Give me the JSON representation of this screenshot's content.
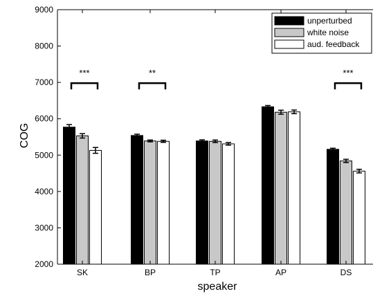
{
  "chart_data": {
    "type": "bar",
    "title": "",
    "xlabel": "speaker",
    "ylabel": "COG",
    "ylim": [
      2000,
      9000
    ],
    "yticks": [
      2000,
      3000,
      4000,
      5000,
      6000,
      7000,
      8000,
      9000
    ],
    "categories": [
      "SK",
      "BP",
      "TP",
      "AP",
      "DS"
    ],
    "series": [
      {
        "name": "unperturbed",
        "color": "#000000",
        "values": [
          5770,
          5540,
          5390,
          6330,
          5160
        ],
        "errors": [
          70,
          35,
          30,
          35,
          30
        ]
      },
      {
        "name": "white noise",
        "color": "#c8c8c8",
        "values": [
          5530,
          5390,
          5380,
          6180,
          4840
        ],
        "errors": [
          60,
          25,
          35,
          55,
          45
        ]
      },
      {
        "name": "aud. feedback",
        "color": "#ffffff",
        "values": [
          5130,
          5380,
          5310,
          6190,
          4560
        ],
        "errors": [
          80,
          30,
          35,
          50,
          50
        ]
      }
    ],
    "significance": [
      {
        "category": "SK",
        "label": "***",
        "level": 6980
      },
      {
        "category": "BP",
        "label": "**",
        "level": 6980
      },
      {
        "category": "DS",
        "label": "***",
        "level": 6980
      }
    ],
    "legend_position": "top-right",
    "grid": false
  }
}
